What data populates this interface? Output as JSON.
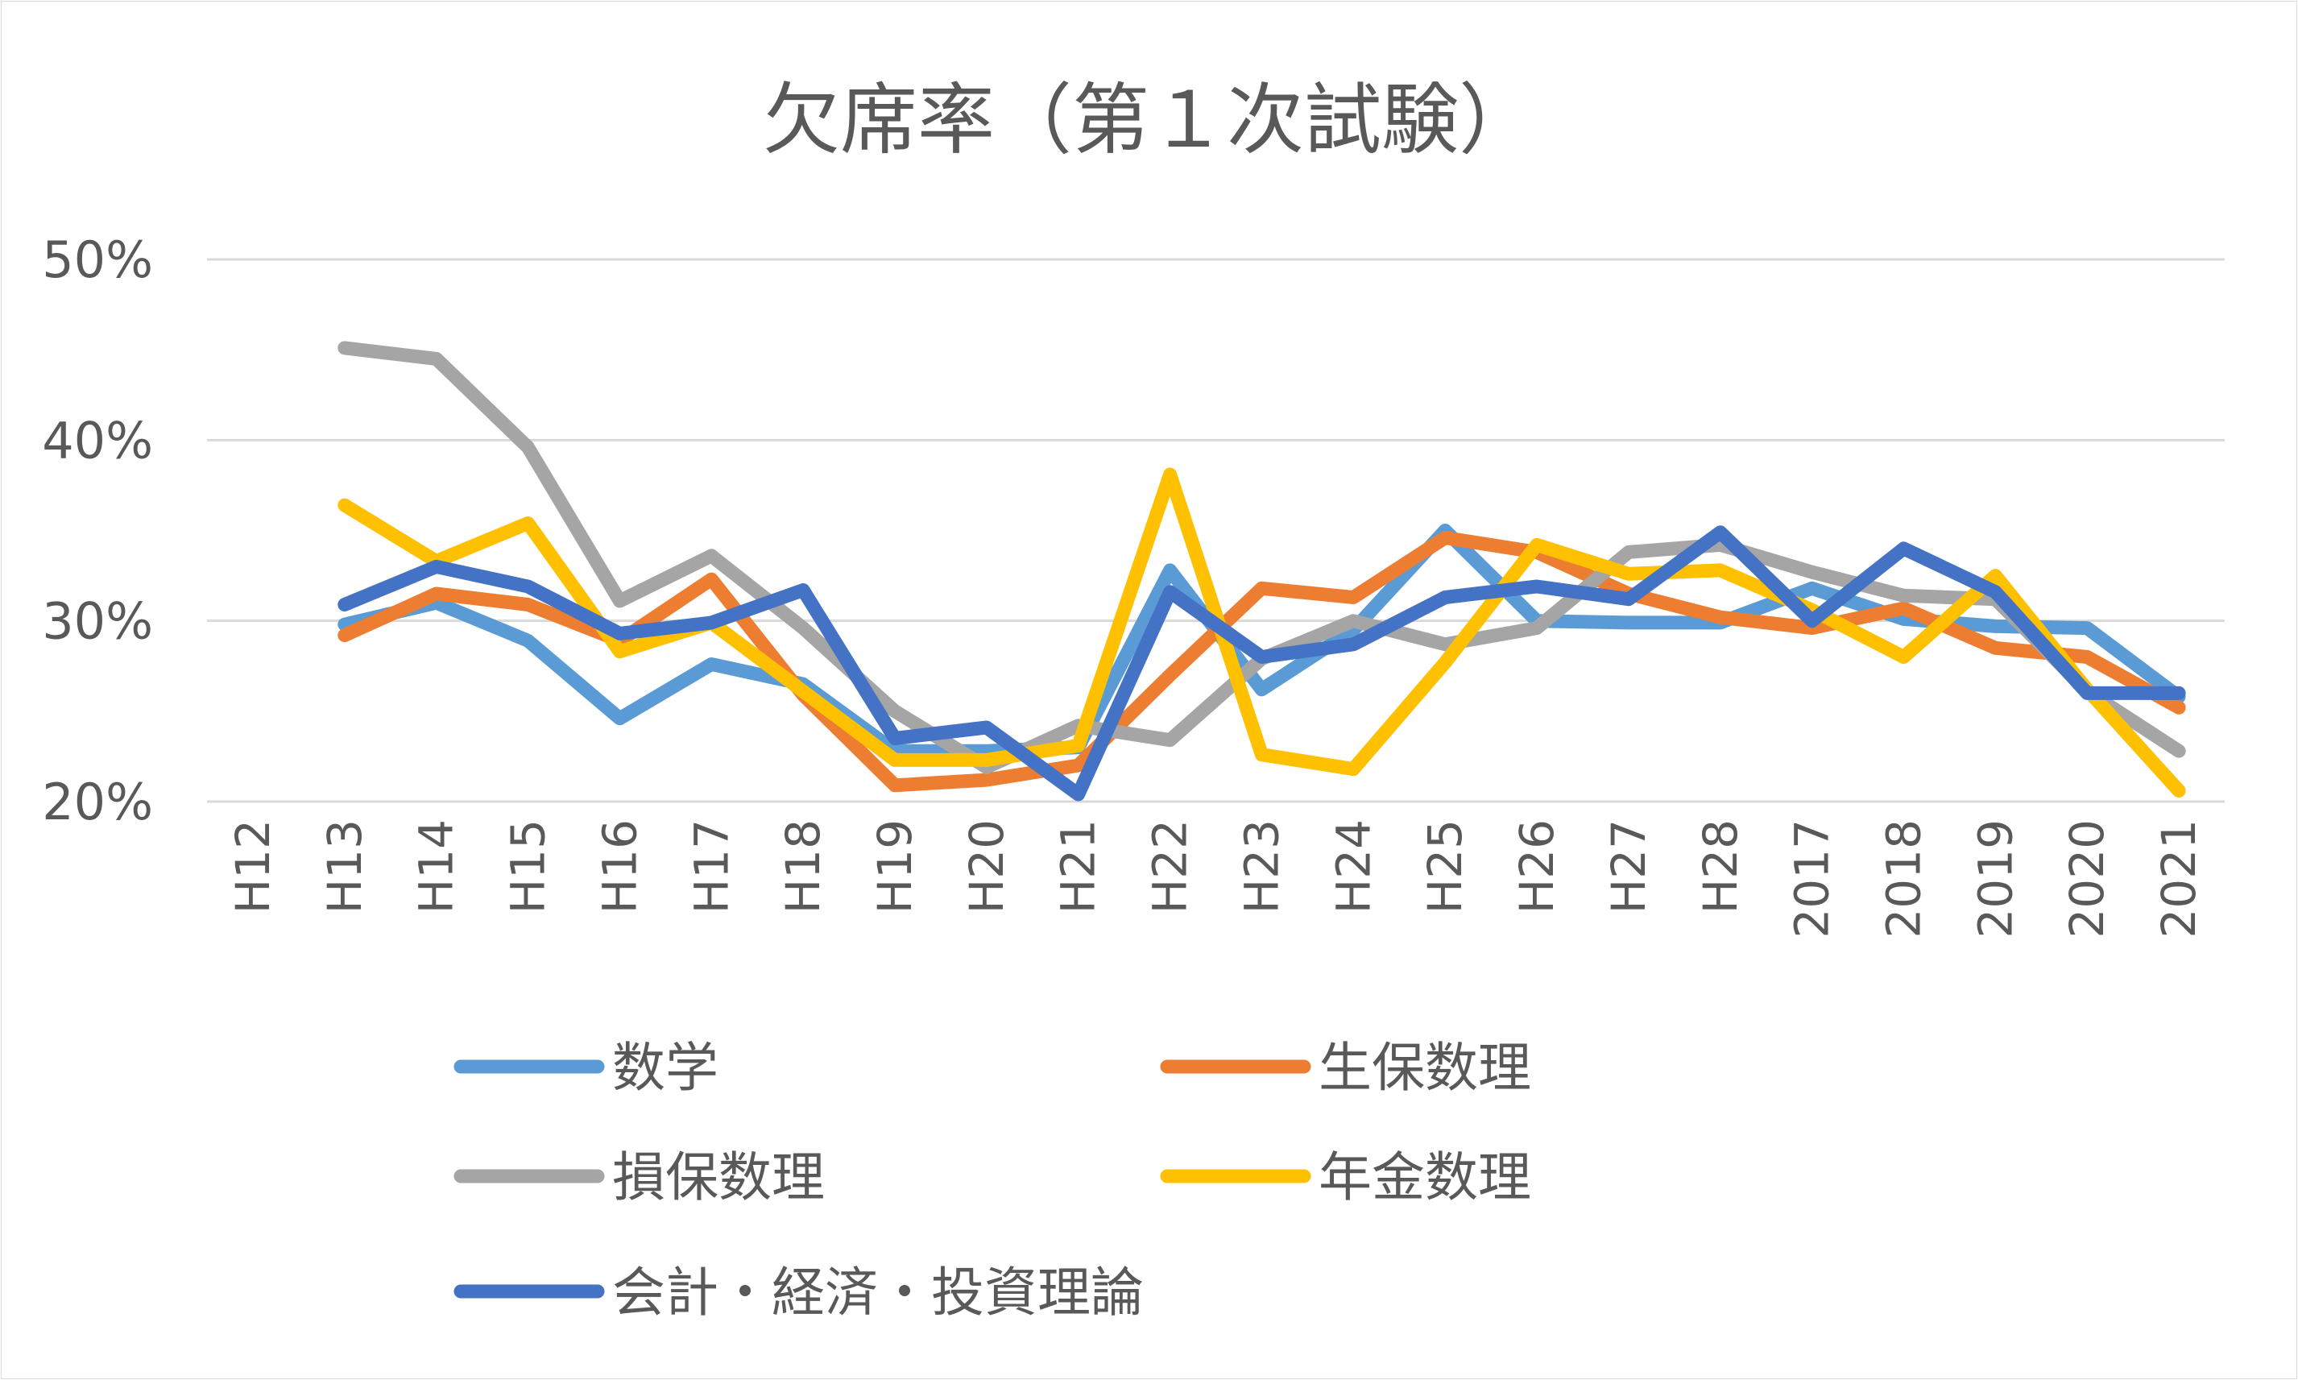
{
  "chart_data": {
    "type": "line",
    "title": "欠席率（第１次試験）",
    "categories": [
      "H12",
      "H13",
      "H14",
      "H15",
      "H16",
      "H17",
      "H18",
      "H19",
      "H20",
      "H21",
      "H22",
      "H23",
      "H24",
      "H25",
      "H26",
      "H27",
      "H28",
      "2017",
      "2018",
      "2019",
      "2020",
      "2021"
    ],
    "yticks": [
      "20%",
      "30%",
      "40%",
      "50%"
    ],
    "ylim": [
      20,
      50
    ],
    "grid": true,
    "legend_position": "bottom",
    "series": [
      {
        "name": "数学",
        "color": "#5b9bd5",
        "values": [
          null,
          29.8,
          31.0,
          28.9,
          24.6,
          27.6,
          26.5,
          22.8,
          22.8,
          23.0,
          32.8,
          26.2,
          29.5,
          35.0,
          30.0,
          29.9,
          29.9,
          31.8,
          30.1,
          29.7,
          29.6,
          25.8
        ]
      },
      {
        "name": "生保数理",
        "color": "#ed7d31",
        "values": [
          null,
          29.2,
          31.5,
          30.9,
          28.9,
          32.3,
          25.9,
          20.9,
          21.2,
          22.0,
          27.0,
          31.8,
          31.3,
          34.6,
          33.8,
          31.5,
          30.2,
          29.6,
          30.7,
          28.5,
          28.0,
          25.2
        ]
      },
      {
        "name": "損保数理",
        "color": "#a5a5a5",
        "values": [
          null,
          45.1,
          44.5,
          39.6,
          31.1,
          33.6,
          29.6,
          25.0,
          21.9,
          24.2,
          23.4,
          27.9,
          30.0,
          28.7,
          29.6,
          33.8,
          34.2,
          32.7,
          31.4,
          31.2,
          26.1,
          22.8
        ]
      },
      {
        "name": "年金数理",
        "color": "#ffc000",
        "values": [
          null,
          36.4,
          33.3,
          35.4,
          28.3,
          29.9,
          26.1,
          22.3,
          22.3,
          23.1,
          38.1,
          22.6,
          21.8,
          27.7,
          34.2,
          32.6,
          32.8,
          30.6,
          28.0,
          32.5,
          26.2,
          20.6
        ]
      },
      {
        "name": "会計・経済・投資理論",
        "color": "#4472c4",
        "values": [
          null,
          30.9,
          33.0,
          31.9,
          29.3,
          29.9,
          31.7,
          23.5,
          24.1,
          20.4,
          31.6,
          28.0,
          28.7,
          31.3,
          31.9,
          31.2,
          34.9,
          30.0,
          34.0,
          31.6,
          26.0,
          26.0
        ]
      }
    ]
  }
}
